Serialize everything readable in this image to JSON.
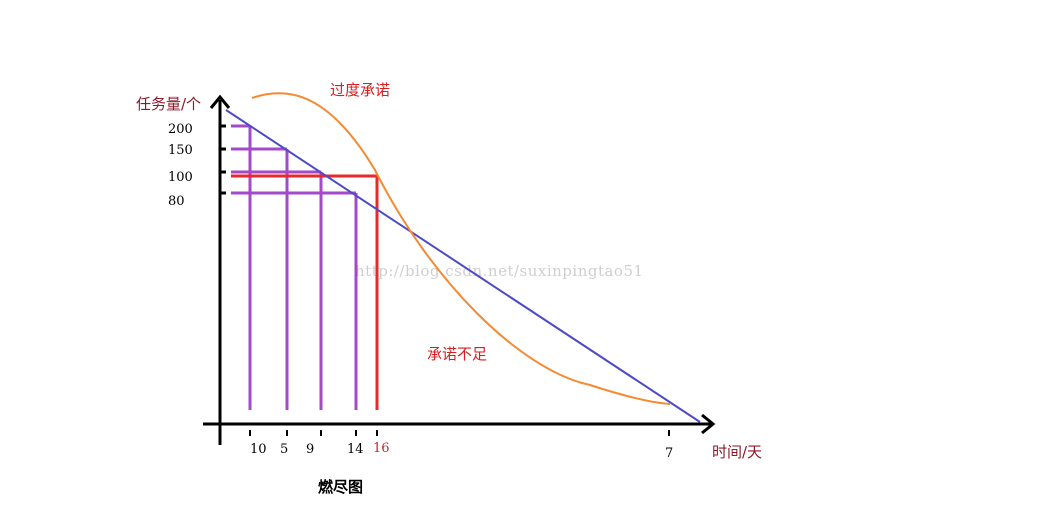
{
  "chart_data": {
    "type": "line",
    "title": "燃尽图",
    "ylabel": "任务量/个",
    "xlabel": "时间/天",
    "y_ticks": [
      "200",
      "150",
      "100",
      "80"
    ],
    "x_ticks": [
      "10",
      "5",
      "9",
      "14",
      "16",
      "7"
    ],
    "annotations": [
      "过度承诺",
      "承诺不足"
    ],
    "watermark": "http://blog.csdn.net/suxinpingtao51",
    "series": [
      {
        "color": "#4b4bc8",
        "style": "ideal-line"
      },
      {
        "color": "#f58a32",
        "style": "curve"
      }
    ],
    "guides": [
      {
        "x_tick": "10",
        "y_tick": "200",
        "color": "#a349c9"
      },
      {
        "x_tick": "5",
        "y_tick": "150",
        "color": "#a349c9"
      },
      {
        "x_tick": "9",
        "y_tick": "100",
        "color": "#a349c9"
      },
      {
        "x_tick": "14",
        "y_tick": "80",
        "color": "#a349c9"
      },
      {
        "x_tick": "16",
        "y_tick": "100",
        "color": "#e8282a"
      }
    ],
    "colors": {
      "axis": "#000000",
      "ylabel": "#8b1a2b",
      "annotation": "#d81e1e",
      "highlight_tick": "#c0282a"
    }
  }
}
